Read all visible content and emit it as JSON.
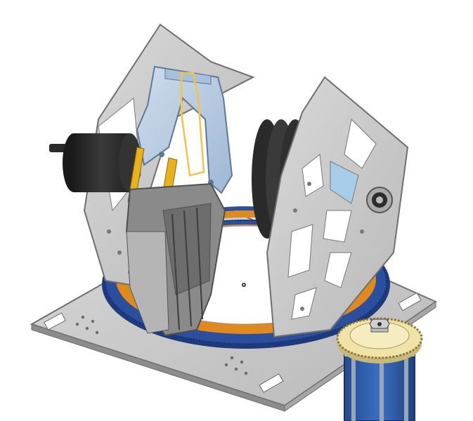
{
  "scene": {
    "subject": "cad-assembly",
    "colors": {
      "background": "#ffffff",
      "plate": "#c9c9c9",
      "plate_edge": "#7a7a7a",
      "plate_dark": "#9a9a9a",
      "ring_orange": "#e08a1e",
      "gear_blue": "#2b4f9e",
      "gear_teeth": "#1e3a7a",
      "motor_black": "#2c2c2c",
      "motor_dark": "#1a1a1a",
      "finger_light_blue": "#b8cde3",
      "finger_dark_gray": "#7d7d7d",
      "linkage_yellow": "#e8b21a",
      "small_gear": "#f0e3a8",
      "stepper_blue": "#2f5fae",
      "highlight_outline": "#f5c542"
    },
    "icons": [
      "base-plate",
      "rotary-bearing-ring",
      "large-ring-gear",
      "left-side-plate",
      "right-side-plate",
      "dc-motor",
      "flywheel",
      "finger-linkage-front",
      "finger-linkage-rear",
      "pinion-gear",
      "stepper-motor",
      "flange-bearing"
    ]
  }
}
